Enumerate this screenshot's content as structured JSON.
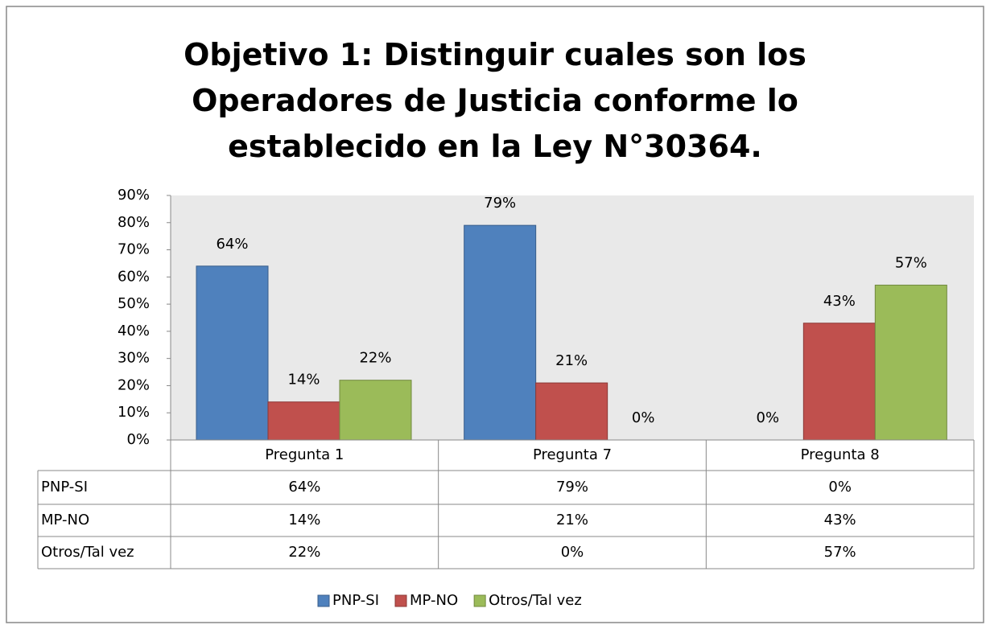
{
  "chart_data": {
    "type": "bar",
    "title": "Objetivo 1: Distinguir cuales son los Operadores de Justicia conforme lo establecido en la Ley N°30364.",
    "categories": [
      "Pregunta 1",
      "Pregunta 7",
      "Pregunta 8"
    ],
    "series": [
      {
        "name": "PNP-SI",
        "color": "#4f81bd",
        "values": [
          64,
          79,
          0
        ],
        "value_labels": [
          "64%",
          "79%",
          "0%"
        ]
      },
      {
        "name": "MP-NO",
        "color": "#c0504d",
        "values": [
          14,
          21,
          43
        ],
        "value_labels": [
          "14%",
          "21%",
          "43%"
        ]
      },
      {
        "name": "Otros/Tal vez",
        "color": "#9bbb59",
        "values": [
          22,
          0,
          57
        ],
        "value_labels": [
          "22%",
          "0%",
          "57%"
        ]
      }
    ],
    "ylim": [
      0,
      90
    ],
    "yticks": [
      {
        "value": 0,
        "label": "0%"
      },
      {
        "value": 10,
        "label": "10%"
      },
      {
        "value": 20,
        "label": "20%"
      },
      {
        "value": 30,
        "label": "30%"
      },
      {
        "value": 40,
        "label": "40%"
      },
      {
        "value": 50,
        "label": "50%"
      },
      {
        "value": 60,
        "label": "60%"
      },
      {
        "value": 70,
        "label": "70%"
      },
      {
        "value": 80,
        "label": "80%"
      },
      {
        "value": 90,
        "label": "90%"
      }
    ],
    "legend": "bottom"
  }
}
